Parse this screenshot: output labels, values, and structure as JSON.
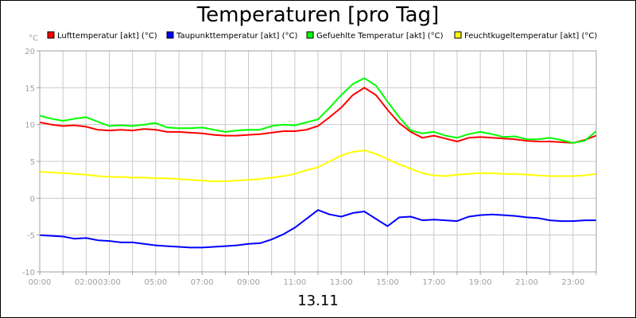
{
  "chart_data": {
    "type": "line",
    "title": "Temperaturen [pro Tag]",
    "ylabel": "°C",
    "xlabel": "13.11",
    "ylim": [
      -10,
      20
    ],
    "xlim": [
      0,
      24
    ],
    "grid": true,
    "legend_position": "top",
    "y_ticks": [
      "20",
      "15",
      "10",
      "5",
      "0",
      "-5",
      "-10"
    ],
    "x_tick_labels": [
      {
        "h": 0,
        "label": "00:00"
      },
      {
        "h": 2,
        "label": "02:00"
      },
      {
        "h": 3,
        "label": "03:00"
      },
      {
        "h": 5,
        "label": "05:00"
      },
      {
        "h": 7,
        "label": "07:00"
      },
      {
        "h": 9,
        "label": "09:00"
      },
      {
        "h": 11,
        "label": "11:00"
      },
      {
        "h": 13,
        "label": "13:00"
      },
      {
        "h": 15,
        "label": "15:00"
      },
      {
        "h": 17,
        "label": "17:00"
      },
      {
        "h": 19,
        "label": "19:00"
      },
      {
        "h": 21,
        "label": "21:00"
      },
      {
        "h": 23,
        "label": "23:00"
      }
    ],
    "x_grid_hours": [
      0,
      1,
      2,
      3,
      4,
      5,
      6,
      7,
      8,
      9,
      10,
      11,
      12,
      13,
      14,
      15,
      16,
      17,
      18,
      19,
      20,
      21,
      22,
      23,
      24
    ],
    "x": [
      0,
      0.5,
      1,
      1.5,
      2,
      2.5,
      3,
      3.5,
      4,
      4.5,
      5,
      5.5,
      6,
      6.5,
      7,
      7.5,
      8,
      8.5,
      9,
      9.5,
      10,
      10.5,
      11,
      11.5,
      12,
      12.5,
      13,
      13.5,
      14,
      14.5,
      15,
      15.5,
      16,
      16.5,
      17,
      17.5,
      18,
      18.5,
      19,
      19.5,
      20,
      20.5,
      21,
      21.5,
      22,
      22.5,
      23,
      23.5,
      24
    ],
    "series": [
      {
        "name": "Lufttemperatur [akt] (°C)",
        "color": "#ff0000",
        "values": [
          10.3,
          10.0,
          9.8,
          9.9,
          9.7,
          9.3,
          9.2,
          9.3,
          9.2,
          9.4,
          9.3,
          9.0,
          9.0,
          8.9,
          8.8,
          8.6,
          8.5,
          8.5,
          8.6,
          8.7,
          8.9,
          9.1,
          9.1,
          9.3,
          9.8,
          11.0,
          12.3,
          14.0,
          15.0,
          14.0,
          12.0,
          10.2,
          9.0,
          8.2,
          8.5,
          8.1,
          7.7,
          8.2,
          8.3,
          8.2,
          8.1,
          8.0,
          7.8,
          7.7,
          7.7,
          7.6,
          7.5,
          7.9,
          8.5
        ]
      },
      {
        "name": "Taupunkttemperatur [akt] (°C)",
        "color": "#0000ff",
        "values": [
          -5.0,
          -5.1,
          -5.2,
          -5.5,
          -5.4,
          -5.7,
          -5.8,
          -6.0,
          -6.0,
          -6.2,
          -6.4,
          -6.5,
          -6.6,
          -6.7,
          -6.7,
          -6.6,
          -6.5,
          -6.4,
          -6.2,
          -6.1,
          -5.6,
          -4.9,
          -4.0,
          -2.8,
          -1.6,
          -2.2,
          -2.5,
          -2.0,
          -1.8,
          -2.8,
          -3.8,
          -2.6,
          -2.5,
          -3.0,
          -2.9,
          -3.0,
          -3.1,
          -2.5,
          -2.3,
          -2.2,
          -2.3,
          -2.4,
          -2.6,
          -2.7,
          -3.0,
          -3.1,
          -3.1,
          -3.0,
          -3.0
        ]
      },
      {
        "name": "Gefuehlte Temperatur [akt] (°C)",
        "color": "#00ff00",
        "values": [
          11.2,
          10.8,
          10.5,
          10.8,
          11.0,
          10.4,
          9.8,
          9.9,
          9.8,
          10.0,
          10.2,
          9.6,
          9.5,
          9.5,
          9.6,
          9.3,
          9.0,
          9.2,
          9.3,
          9.3,
          9.8,
          10.0,
          9.9,
          10.3,
          10.7,
          12.3,
          14.0,
          15.5,
          16.3,
          15.3,
          13.1,
          11.0,
          9.2,
          8.8,
          9.0,
          8.5,
          8.2,
          8.7,
          9.0,
          8.7,
          8.3,
          8.4,
          8.0,
          8.0,
          8.2,
          7.9,
          7.5,
          7.8,
          9.1
        ]
      },
      {
        "name": "Feuchtkugeltemperatur [akt] (°C)",
        "color": "#ffff00",
        "values": [
          3.6,
          3.5,
          3.4,
          3.3,
          3.2,
          3.0,
          2.9,
          2.9,
          2.8,
          2.8,
          2.7,
          2.7,
          2.6,
          2.5,
          2.4,
          2.3,
          2.3,
          2.4,
          2.5,
          2.6,
          2.8,
          3.0,
          3.3,
          3.8,
          4.2,
          5.0,
          5.8,
          6.3,
          6.5,
          6.0,
          5.3,
          4.6,
          4.0,
          3.4,
          3.1,
          3.0,
          3.2,
          3.3,
          3.4,
          3.4,
          3.3,
          3.3,
          3.2,
          3.1,
          3.0,
          3.0,
          3.0,
          3.1,
          3.3
        ]
      }
    ]
  }
}
